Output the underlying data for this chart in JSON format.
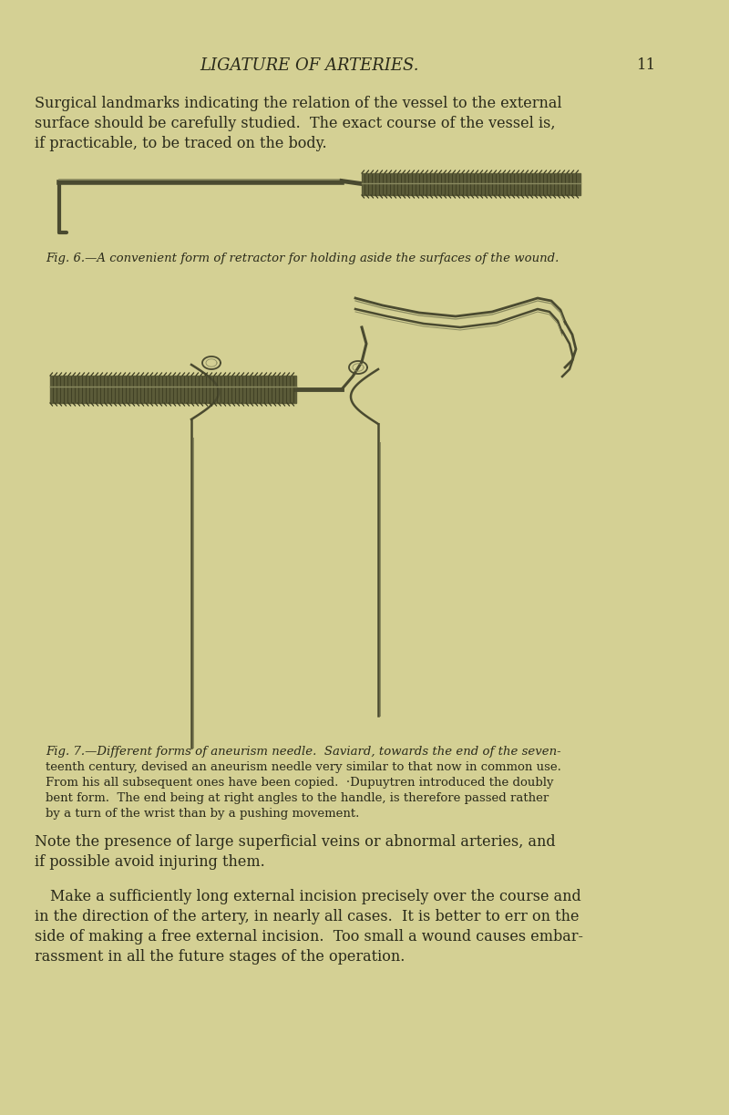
{
  "background_color": "#d4d094",
  "page_color": "#d4d094",
  "title": "LIGATURE OF ARTERIES.",
  "page_number": "11",
  "title_fontsize": 13,
  "body_fontsize": 11.5,
  "caption_fontsize": 9.5,
  "text_color": "#2a2a1a",
  "para1_lines": [
    "Surgical landmarks indicating the relation of the vessel to the external",
    "surface should be carefully studied.  The exact course of the vessel is,",
    "if practicable, to be traced on the body."
  ],
  "fig6_caption": "Fig. 6.—A convenient form of retractor for holding aside the surfaces of the wound.",
  "fig7_caption_lines": [
    "Fig. 7.—Different forms of aneurism needle.  Saviard, towards the end of the seven-",
    "teenth century, devised an aneurism needle very similar to that now in common use.",
    "From his all subsequent ones have been copied.  ·Dupuytren introduced the doubly",
    "bent form.  The end being at right angles to the handle, is therefore passed rather",
    "by a turn of the wrist than by a pushing movement."
  ],
  "para2_lines": [
    "Note the presence of large superficial veins or abnormal arteries, and",
    "if possible avoid injuring them."
  ],
  "para3_lines": [
    "Make a sufficiently long external incision precisely over the course and",
    "in the direction of the artery, in nearly all cases.  It is better to err on the",
    "side of making a free external incision.  Too small a wound causes embar-",
    "rassment in all the future stages of the operation."
  ],
  "shaft_color": "#4a4a30",
  "grip_color": "#5a5a38",
  "grip_texture_color": "#3a3a20",
  "highlight_color": "#8a8a60"
}
